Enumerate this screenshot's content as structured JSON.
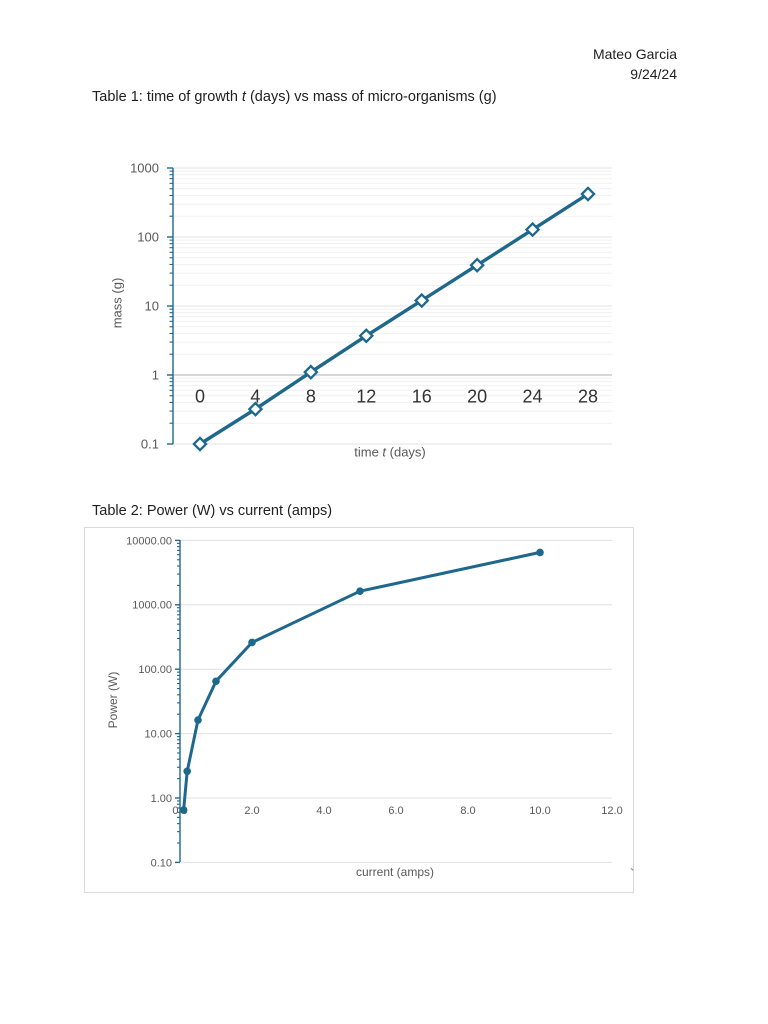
{
  "header": {
    "name": "Mateo Garcia",
    "date": "9/24/24"
  },
  "table1": {
    "title_pre": "Table 1: time of growth ",
    "title_italic": "t",
    "title_post": " (days) vs mass of micro-organisms (g)"
  },
  "table2": {
    "title": "Table 2: Power (W) vs current (amps)"
  },
  "artifact_glyph": "`",
  "colors": {
    "accent": "#1E688C",
    "grid_major": "#E3E3E3",
    "grid_minor": "#F1F1F1",
    "grid_major_2": "#E0E0E0",
    "axis_cross": "#BFBFBF",
    "tick_dark": "#333333",
    "tick_gray": "#595959",
    "frame_border": "#D9D9D9",
    "text": "#1F1F1F"
  },
  "chart_data": [
    {
      "type": "line",
      "title": "Table 1: time of growth t (days) vs mass of micro-organisms (g)",
      "x": [
        0,
        4,
        8,
        12,
        16,
        20,
        24,
        28
      ],
      "series": [
        {
          "name": "mass of micro-organisms",
          "values": [
            0.1,
            0.32,
            1.1,
            3.7,
            12,
            39,
            128,
            420
          ]
        }
      ],
      "xlabel": "time t (days)",
      "xlabel_pre": "time ",
      "xlabel_italic": "t",
      "xlabel_post": " (days)",
      "ylabel": "mass (g)",
      "yscale": "log",
      "ylim": [
        0.1,
        1000
      ],
      "yticks": [
        "0.1",
        "1",
        "10",
        "100",
        "1000"
      ],
      "xticks": [
        "0",
        "4",
        "8",
        "12",
        "16",
        "20",
        "24",
        "28"
      ],
      "marker": "open-diamond",
      "grid": "major+minor",
      "legend": "none"
    },
    {
      "type": "line",
      "title": "Table 2: Power (W) vs current (amps)",
      "x": [
        0.1,
        0.2,
        0.5,
        1,
        2,
        5,
        10
      ],
      "series": [
        {
          "name": "Power",
          "values": [
            0.65,
            2.6,
            16.25,
            65,
            260,
            1625,
            6500
          ]
        }
      ],
      "xlabel": "current (amps)",
      "ylabel": "Power (W)",
      "yscale": "log",
      "ylim": [
        0.1,
        10000
      ],
      "xlim": [
        0,
        12
      ],
      "yticks": [
        "0.10",
        "1.00",
        "10.00",
        "100.00",
        "1000.00",
        "10000.00"
      ],
      "xticks": [
        "0.0",
        "2.0",
        "4.0",
        "6.0",
        "8.0",
        "10.0",
        "12.0"
      ],
      "marker": "filled-circle",
      "grid": "major",
      "legend": "none"
    }
  ]
}
